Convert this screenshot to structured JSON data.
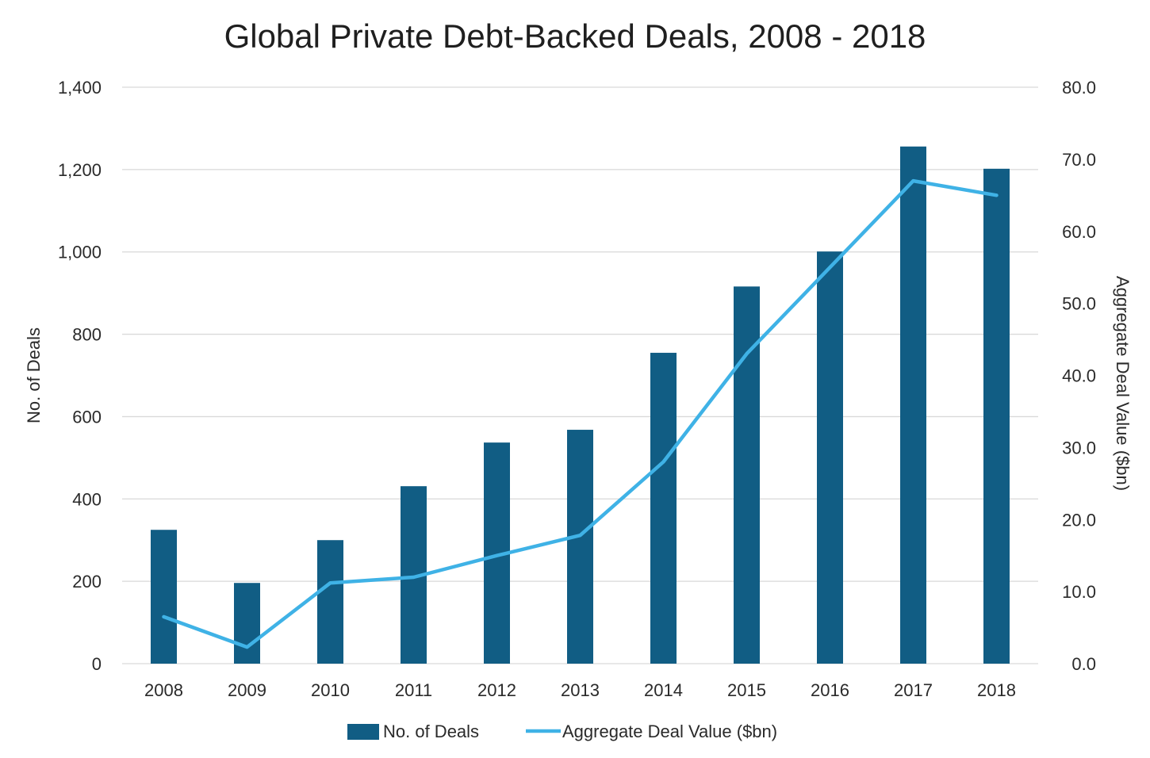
{
  "chart_data": {
    "type": "bar",
    "title": "Global Private Debt-Backed Deals, 2008 - 2018",
    "categories": [
      "2008",
      "2009",
      "2010",
      "2011",
      "2012",
      "2013",
      "2014",
      "2015",
      "2016",
      "2017",
      "2018"
    ],
    "series": [
      {
        "name": "No. of Deals",
        "type": "bar",
        "axis": "left",
        "color": "#115d84",
        "values": [
          325,
          196,
          300,
          431,
          537,
          568,
          755,
          916,
          1001,
          1256,
          1202
        ]
      },
      {
        "name": "Aggregate Deal Value ($bn)",
        "type": "line",
        "axis": "right",
        "color": "#3fb2e6",
        "values": [
          6.5,
          2.3,
          11.2,
          12.0,
          15.0,
          17.8,
          28.0,
          43.0,
          55.0,
          67.0,
          65.0
        ]
      }
    ],
    "y_left": {
      "label": "No. of Deals",
      "lim": [
        0,
        1400
      ],
      "ticks": [
        0,
        200,
        400,
        600,
        800,
        1000,
        1200,
        1400
      ],
      "tick_labels": [
        "0",
        "200",
        "400",
        "600",
        "800",
        "1,000",
        "1,200",
        "1,400"
      ]
    },
    "y_right": {
      "label": "Aggregate Deal Value ($bn)",
      "lim": [
        0,
        80
      ],
      "ticks": [
        0,
        10,
        20,
        30,
        40,
        50,
        60,
        70,
        80
      ],
      "tick_labels": [
        "0.0",
        "10.0",
        "20.0",
        "30.0",
        "40.0",
        "50.0",
        "60.0",
        "70.0",
        "80.0"
      ]
    },
    "grid": true,
    "legend_position": "bottom",
    "grid_color": "#d9d9d9"
  }
}
